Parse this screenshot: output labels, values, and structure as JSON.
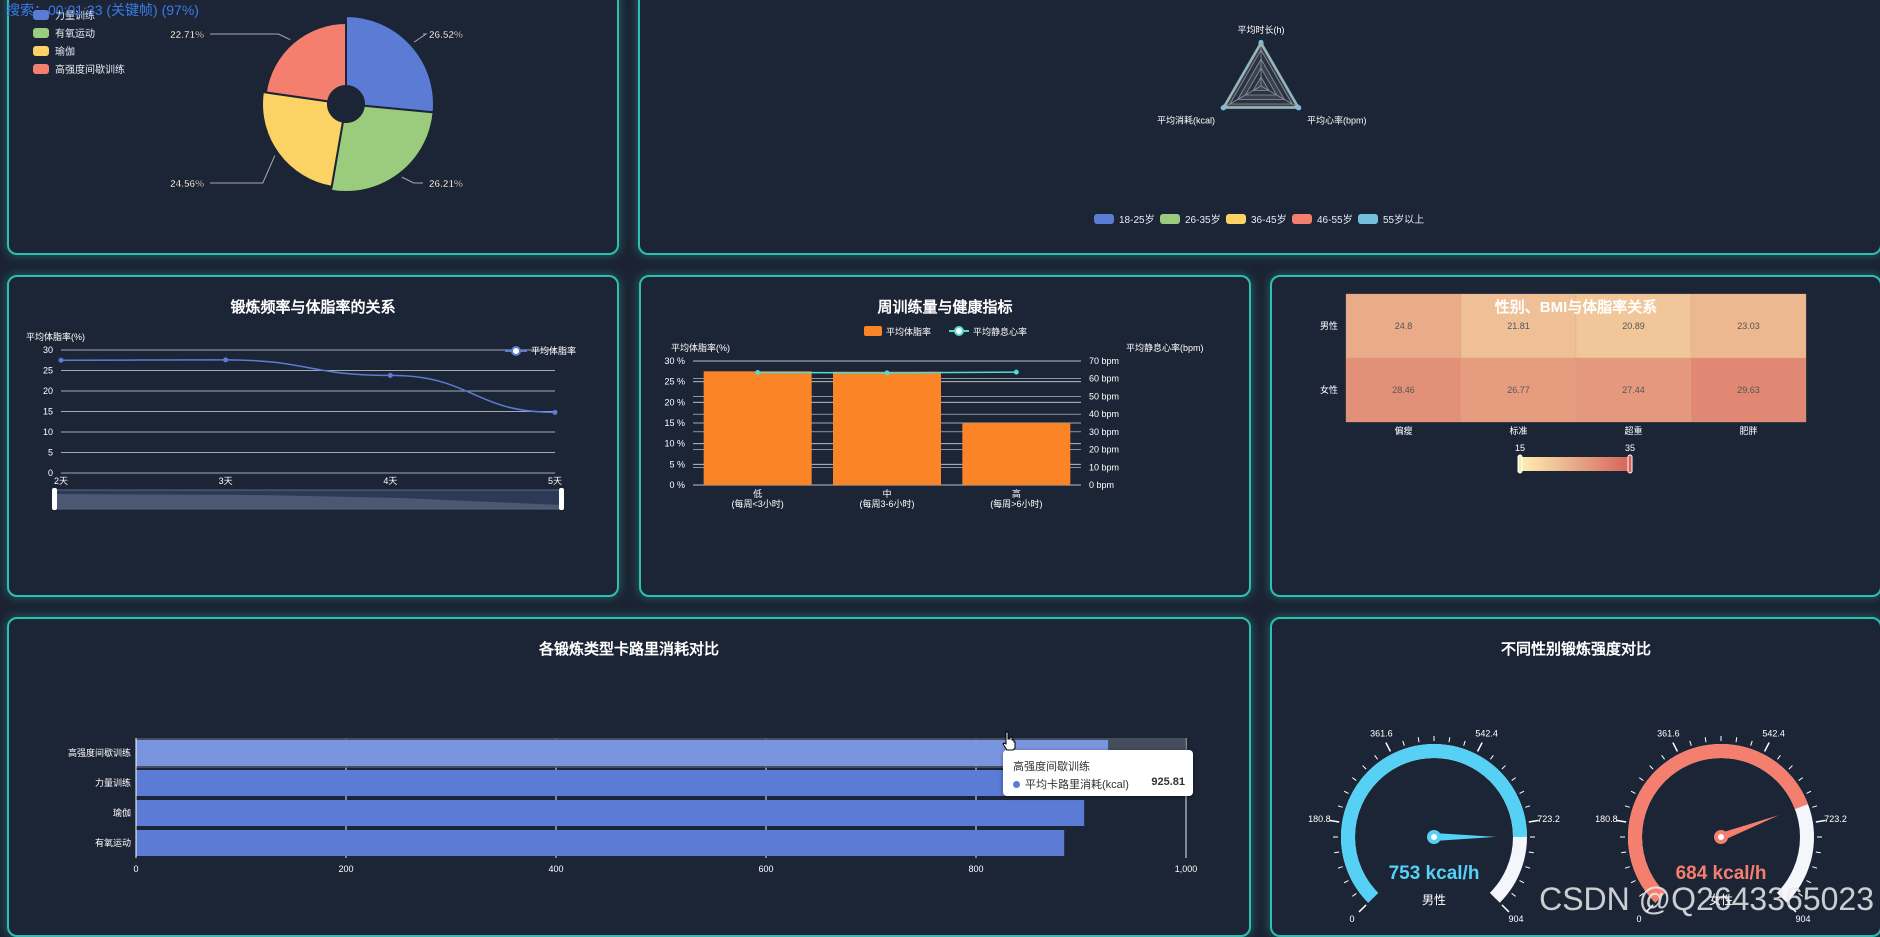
{
  "top_overlay": "搜索：00:01:33 (关键帧) (97%)",
  "watermark": "CSDN @Q2643365023",
  "colors": {
    "blue": "#5b7bd5",
    "green": "#9bcb7c",
    "yellow": "#fdd264",
    "red": "#f57f6f",
    "cyan": "#73c0de",
    "orange": "#fa8426",
    "teal": "#57d8d0"
  },
  "panels": {
    "line_title": "锻炼频率与体脂率的关系",
    "bar_title": "周训练量与健康指标",
    "heat_title": "性别、BMI与体脂率关系",
    "hbar_title": "各锻炼类型卡路里消耗对比",
    "gauge_title": "不同性别锻炼强度对比"
  },
  "tooltip": {
    "title": "高强度间歇训练",
    "series": "平均卡路里消耗(kcal)",
    "value": "925.81"
  },
  "chart_data": [
    {
      "type": "pie",
      "legend": [
        "力量训练",
        "有氧运动",
        "瑜伽",
        "高强度间歇训练"
      ],
      "slices": [
        {
          "name": "力量训练",
          "percent": "26.52%",
          "value": 26.52
        },
        {
          "name": "有氧运动",
          "percent": "26.21%",
          "value": 26.21
        },
        {
          "name": "瑜伽",
          "percent": "24.56%",
          "value": 24.56
        },
        {
          "name": "高强度间歇训练",
          "percent": "22.71%",
          "value": 22.71
        }
      ]
    },
    {
      "type": "radar",
      "indicators": [
        "平均时长(h)",
        "平均心率(bpm)",
        "平均消耗(kcal)"
      ],
      "legend": [
        "18-25岁",
        "26-35岁",
        "36-45岁",
        "46-55岁",
        "55岁以上"
      ]
    },
    {
      "type": "line",
      "title": "锻炼频率与体脂率的关系",
      "legend": "平均体脂率",
      "ylabel": "平均体脂率(%)",
      "categories": [
        "2天",
        "3天",
        "4天",
        "5天"
      ],
      "values": [
        27.5,
        27.6,
        23.8,
        14.8
      ],
      "yticks": [
        "0",
        "5",
        "10",
        "15",
        "20",
        "25",
        "30"
      ],
      "ylim": [
        0,
        30
      ]
    },
    {
      "type": "bar",
      "title": "周训练量与健康指标",
      "legend": [
        "平均体脂率",
        "平均静息心率"
      ],
      "ylabel_left": "平均体脂率(%)",
      "ylabel_right": "平均静息心率(bpm)",
      "categories": [
        [
          "低",
          "(每周<3小时)"
        ],
        [
          "中",
          "(每周3-6小时)"
        ],
        [
          "高",
          "(每周>6小时)"
        ]
      ],
      "bar_values": [
        27.5,
        27.4,
        15.0
      ],
      "line_values": [
        63.5,
        63.3,
        63.7
      ],
      "yticks_left": [
        "0 %",
        "5 %",
        "10 %",
        "15 %",
        "20 %",
        "25 %",
        "30 %"
      ],
      "yticks_right": [
        "0 bpm",
        "10 bpm",
        "20 bpm",
        "30 bpm",
        "40 bpm",
        "50 bpm",
        "60 bpm",
        "70 bpm"
      ],
      "ylim_left": [
        0,
        30
      ],
      "ylim_right": [
        0,
        70
      ]
    },
    {
      "type": "heatmap",
      "title": "性别、BMI与体脂率关系",
      "rows": [
        "男性",
        "女性"
      ],
      "cols": [
        "偏瘦",
        "标准",
        "超重",
        "肥胖"
      ],
      "values": [
        [
          "24.8",
          "21.81",
          "20.89",
          "23.03"
        ],
        [
          "28.46",
          "26.77",
          "27.44",
          "29.63"
        ]
      ],
      "range": [
        "15",
        "35"
      ]
    },
    {
      "type": "bar",
      "orientation": "horizontal",
      "title": "各锻炼类型卡路里消耗对比",
      "categories": [
        "高强度间歇训练",
        "力量训练",
        "瑜伽",
        "有氧运动"
      ],
      "values": [
        925.81,
        905,
        903,
        884
      ],
      "xticks": [
        "0",
        "200",
        "400",
        "600",
        "800",
        "1,000"
      ],
      "xlim": [
        0,
        1000
      ]
    },
    {
      "type": "gauge",
      "title": "不同性别锻炼强度对比",
      "ticks": [
        "0",
        "180.8",
        "361.6",
        "542.4",
        "723.2",
        "904"
      ],
      "gauges": [
        {
          "name": "男性",
          "value": 753,
          "label": "753 kcal/h"
        },
        {
          "name": "女性",
          "value": 684,
          "label": "684 kcal/h"
        }
      ],
      "max": 904
    }
  ]
}
